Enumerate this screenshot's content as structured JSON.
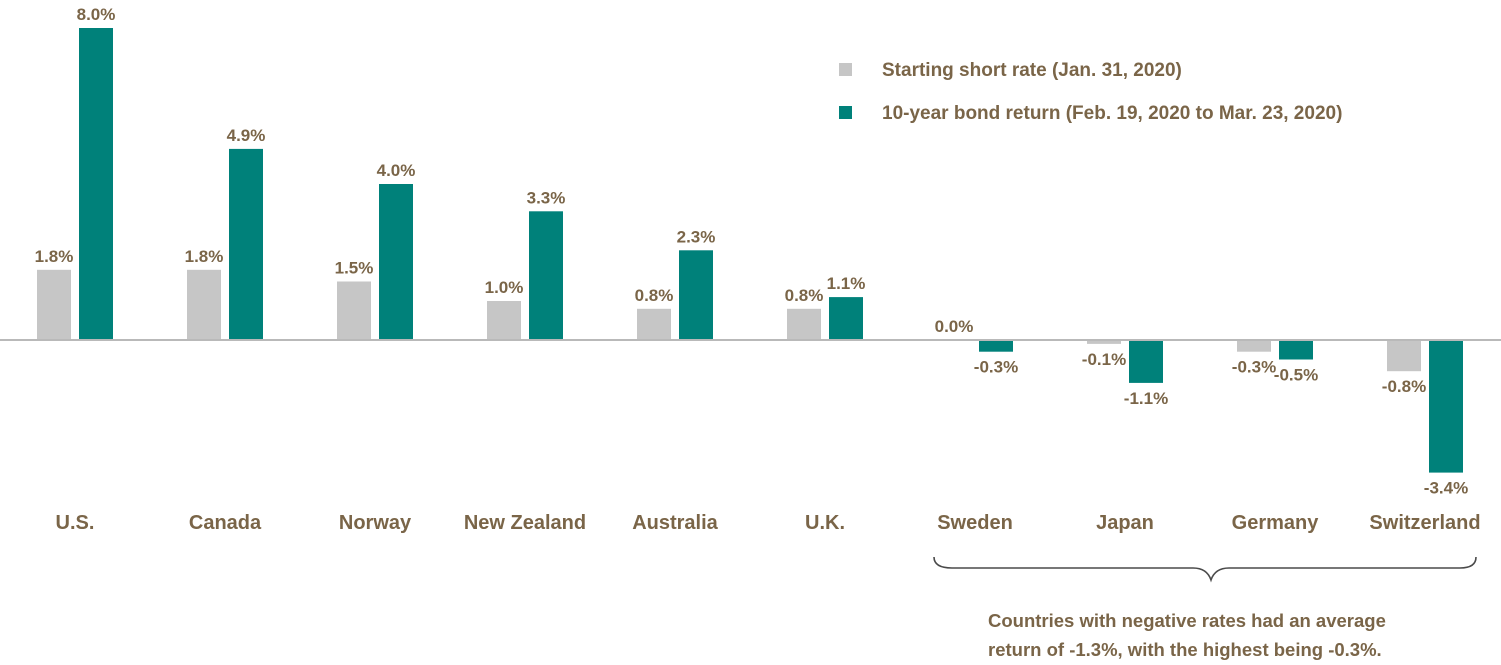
{
  "chart_data": {
    "type": "bar",
    "categories": [
      "U.S.",
      "Canada",
      "Norway",
      "New Zealand",
      "Australia",
      "U.K.",
      "Sweden",
      "Japan",
      "Germany",
      "Switzerland"
    ],
    "series": [
      {
        "name": "Starting short rate (Jan. 31, 2020)",
        "values": [
          1.8,
          1.8,
          1.5,
          1.0,
          0.8,
          0.8,
          0.0,
          -0.1,
          -0.3,
          -0.8
        ],
        "labels": [
          "1.8%",
          "1.8%",
          "1.5%",
          "1.0%",
          "0.8%",
          "0.8%",
          "0.0%",
          "-0.1%",
          "-0.3%",
          "-0.8%"
        ]
      },
      {
        "name": "10-year bond return (Feb. 19, 2020 to Mar. 23, 2020)",
        "values": [
          8.0,
          4.9,
          4.0,
          3.3,
          2.3,
          1.1,
          -0.3,
          -1.1,
          -0.5,
          -3.4
        ],
        "labels": [
          "8.0%",
          "4.9%",
          "4.0%",
          "3.3%",
          "2.3%",
          "1.1%",
          "-0.3%",
          "-1.1%",
          "-0.5%",
          "-3.4%"
        ]
      }
    ],
    "colors": {
      "short_rate": "#c6c6c6",
      "bond_return": "#00817a",
      "text": "#7a6548",
      "axis": "#b9b9b9"
    },
    "legend_position": "top-right",
    "grid": false,
    "annotation": {
      "bracket_spans": [
        "Sweden",
        "Japan",
        "Germany",
        "Switzerland"
      ],
      "lines": [
        "Countries with negative rates had an average",
        "return of -1.3%, with the highest being -0.3%."
      ]
    }
  }
}
